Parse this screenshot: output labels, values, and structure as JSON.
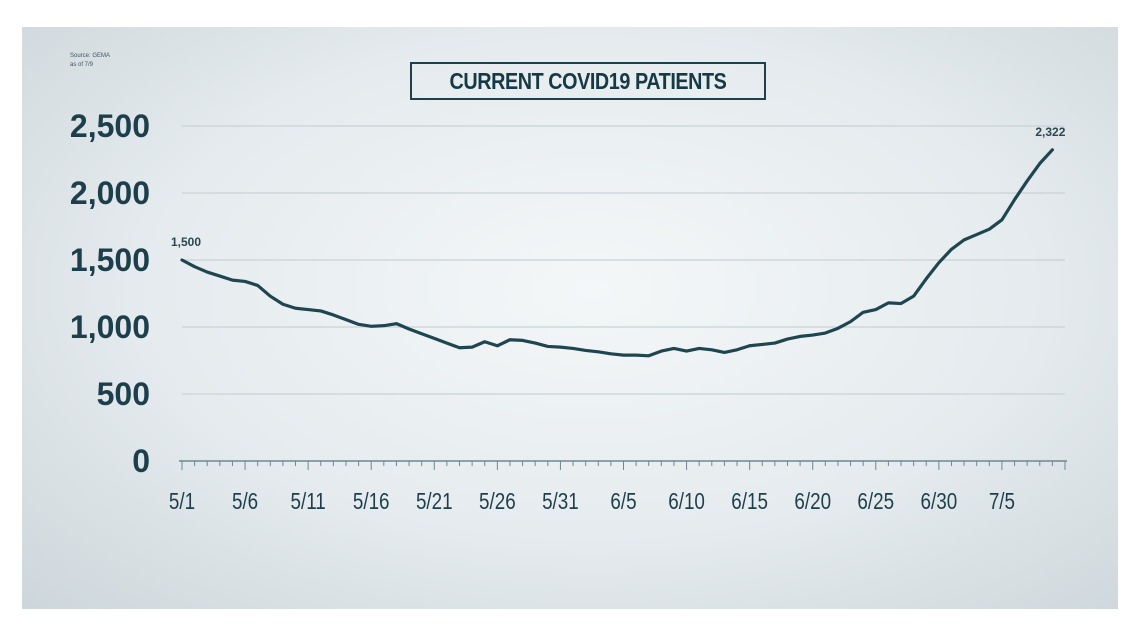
{
  "source_note": [
    "Source: GEMA",
    "as of 7/9"
  ],
  "chart_data": {
    "type": "line",
    "title": "CURRENT COVID19 PATIENTS",
    "xlabel": "",
    "ylabel": "",
    "ylim": [
      0,
      2500
    ],
    "yticks": [
      0,
      500,
      1000,
      1500,
      2000,
      2500
    ],
    "ytick_labels": [
      "0",
      "500",
      "1,000",
      "1,500",
      "2,000",
      "2,500"
    ],
    "xtick_labels": [
      "5/1",
      "5/6",
      "5/11",
      "5/16",
      "5/21",
      "5/26",
      "5/31",
      "6/5",
      "6/10",
      "6/15",
      "6/20",
      "6/25",
      "6/30",
      "7/5"
    ],
    "xtick_day_index": [
      0,
      5,
      10,
      15,
      20,
      25,
      30,
      35,
      40,
      45,
      50,
      55,
      60,
      65
    ],
    "xlim_day_index": [
      0,
      70
    ],
    "grid": "horizontal",
    "line_color": "#1f4550",
    "series": [
      {
        "dates": [
          "5/1",
          "5/2",
          "5/3",
          "5/4",
          "5/5",
          "5/6",
          "5/7",
          "5/8",
          "5/9",
          "5/10",
          "5/11",
          "5/12",
          "5/13",
          "5/14",
          "5/15",
          "5/16",
          "5/17",
          "5/18",
          "5/19",
          "5/20",
          "5/21",
          "5/22",
          "5/23",
          "5/24",
          "5/25",
          "5/26",
          "5/27",
          "5/28",
          "5/29",
          "5/30",
          "5/31",
          "6/1",
          "6/2",
          "6/3",
          "6/4",
          "6/5",
          "6/6",
          "6/7",
          "6/8",
          "6/9",
          "6/10",
          "6/11",
          "6/12",
          "6/13",
          "6/14",
          "6/15",
          "6/16",
          "6/17",
          "6/18",
          "6/19",
          "6/20",
          "6/21",
          "6/22",
          "6/23",
          "6/24",
          "6/25",
          "6/26",
          "6/27",
          "6/28",
          "6/29",
          "6/30",
          "7/1",
          "7/2",
          "7/3",
          "7/4",
          "7/5",
          "7/6",
          "7/7",
          "7/8",
          "7/9"
        ],
        "values": [
          1500,
          1450,
          1410,
          1380,
          1350,
          1340,
          1310,
          1230,
          1170,
          1140,
          1130,
          1120,
          1090,
          1055,
          1020,
          1005,
          1010,
          1025,
          985,
          950,
          915,
          880,
          845,
          850,
          890,
          860,
          905,
          900,
          880,
          855,
          850,
          840,
          825,
          815,
          800,
          790,
          790,
          785,
          820,
          840,
          820,
          840,
          830,
          810,
          830,
          860,
          870,
          880,
          910,
          930,
          940,
          955,
          990,
          1040,
          1110,
          1130,
          1180,
          1175,
          1230,
          1360,
          1480,
          1580,
          1650,
          1690,
          1730,
          1800,
          1950,
          2090,
          2220,
          2322
        ]
      }
    ],
    "annotations": [
      {
        "date": "5/1",
        "value": 1500,
        "text": "1,500"
      },
      {
        "date": "7/9",
        "value": 2322,
        "text": "2,322"
      }
    ]
  }
}
